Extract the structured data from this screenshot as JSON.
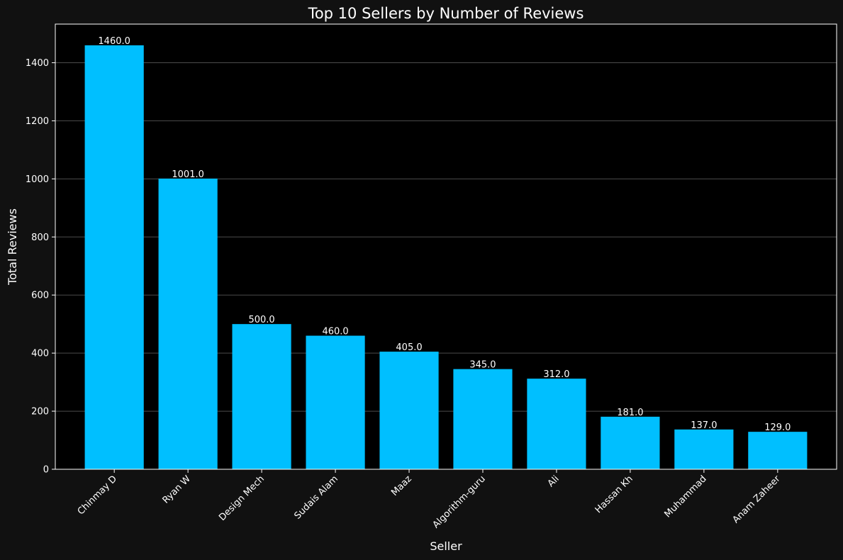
{
  "chart_data": {
    "type": "bar",
    "title": "Top 10 Sellers by Number of Reviews",
    "xlabel": "Seller",
    "ylabel": "Total Reviews",
    "categories": [
      "Chinmay D",
      "Ryan W",
      "Design Mech",
      "Sudais Alam",
      "Maaz",
      "Algorithm-guru",
      "Ali",
      "Hassan Kh",
      "Muhammad",
      "Anam Zaheer"
    ],
    "values": [
      1460.0,
      1001.0,
      500.0,
      460.0,
      405.0,
      345.0,
      312.0,
      181.0,
      137.0,
      129.0
    ],
    "value_labels": [
      "1460.0",
      "1001.0",
      "500.0",
      "460.0",
      "405.0",
      "345.0",
      "312.0",
      "181.0",
      "137.0",
      "129.0"
    ],
    "ylim": [
      0,
      1533
    ],
    "yticks": [
      0,
      200,
      400,
      600,
      800,
      1000,
      1200,
      1400
    ],
    "grid": "y",
    "bar_color": "#00bfff",
    "plot_background": "#000000",
    "figure_background": "#111111",
    "text_color": "#ffffff",
    "grid_color": "#555555"
  }
}
